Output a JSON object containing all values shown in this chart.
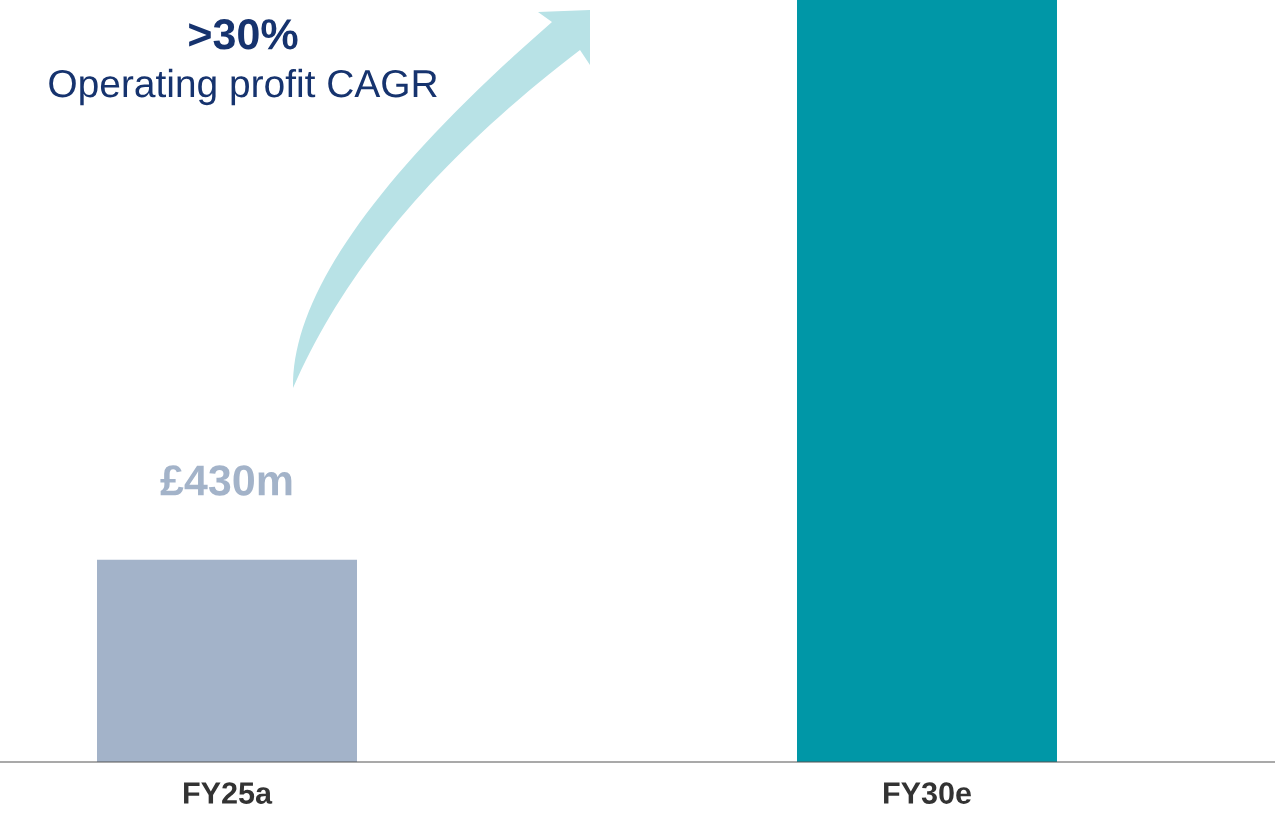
{
  "chart_data": {
    "type": "bar",
    "categories": [
      "FY25a",
      "FY30e"
    ],
    "values": [
      430,
      1620
    ],
    "colors": [
      "#a3b3c9",
      "#0097a7"
    ],
    "value_labels": [
      "£430m",
      null
    ],
    "annotations": [
      ">30%",
      "Operating profit CAGR"
    ],
    "grid": false,
    "legend": false
  }
}
